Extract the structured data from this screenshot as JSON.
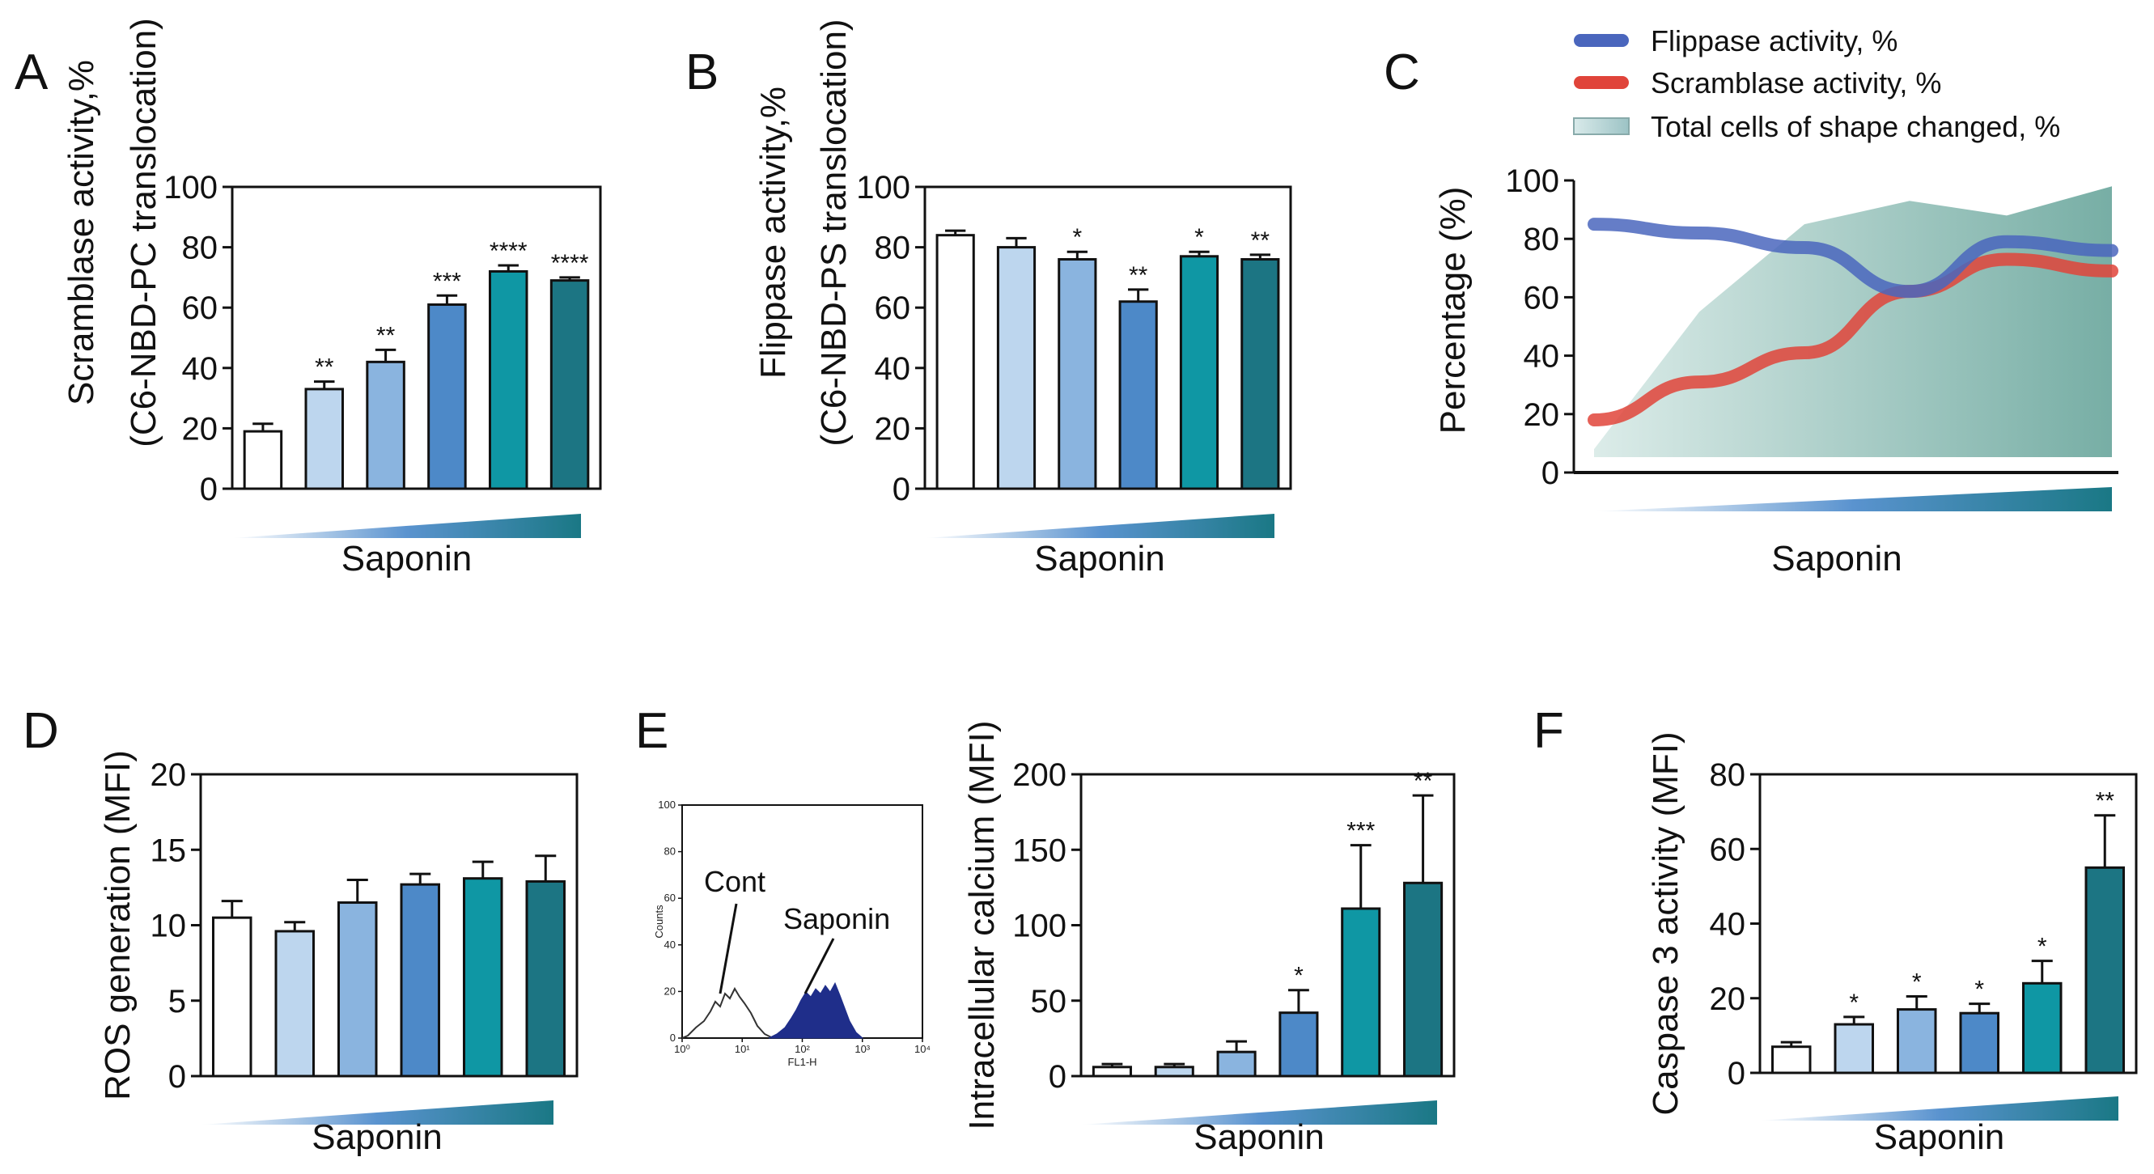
{
  "figure": {
    "colors": {
      "bar_colors": [
        "#ffffff",
        "#bdd6ee",
        "#8ab4df",
        "#4d89c8",
        "#0f97a4",
        "#1c7583"
      ],
      "flippase": "#4a66bd",
      "scramblase": "#e0443a",
      "shape_fill": "#9fc9c3"
    }
  },
  "chart_data": [
    {
      "id": "A",
      "letter": "A",
      "type": "bar",
      "ylabel": "Scramblase activity,%",
      "ylabel2": "(C6-NBD-PC translocation)",
      "xlabel": "Saponin",
      "ylim": [
        0,
        100
      ],
      "yticks": [
        "0",
        "20",
        "40",
        "60",
        "80",
        "100"
      ],
      "values": [
        19,
        33,
        42,
        61,
        72,
        69
      ],
      "errors": [
        2.5,
        2.5,
        4,
        3,
        2,
        1
      ],
      "stars": [
        "",
        "**",
        "**",
        "***",
        "****",
        "****"
      ]
    },
    {
      "id": "B",
      "letter": "B",
      "type": "bar",
      "ylabel": "Flippase activity,%",
      "ylabel2": "(C6-NBD-PS translocation)",
      "xlabel": "Saponin",
      "ylim": [
        0,
        100
      ],
      "yticks": [
        "0",
        "20",
        "40",
        "60",
        "80",
        "100"
      ],
      "values": [
        84,
        80,
        76,
        62,
        77,
        76
      ],
      "errors": [
        1.5,
        3,
        2.5,
        4,
        1.5,
        1.5
      ],
      "stars": [
        "",
        "",
        "*",
        "**",
        "*",
        "**"
      ]
    },
    {
      "id": "C",
      "letter": "C",
      "type": "line",
      "ylabel": "Percentage (%)",
      "xlabel": "Saponin",
      "ylim": [
        0,
        100
      ],
      "yticks": [
        "0",
        "20",
        "40",
        "60",
        "80",
        "100"
      ],
      "legend": [
        "Flippase activity, %",
        "Scramblase activity, %",
        "Total cells of shape changed, %"
      ],
      "x": [
        0,
        1,
        2,
        3,
        4,
        5
      ],
      "series": [
        {
          "name": "Flippase activity, %",
          "values": [
            85,
            82,
            77,
            62,
            79,
            76
          ]
        },
        {
          "name": "Scramblase activity, %",
          "values": [
            18,
            31,
            41,
            62,
            73,
            69
          ]
        },
        {
          "name": "Total cells of shape changed, %",
          "values": [
            8,
            55,
            85,
            93,
            88,
            98
          ]
        }
      ]
    },
    {
      "id": "D",
      "letter": "D",
      "type": "bar",
      "ylabel": "ROS generation (MFI)",
      "xlabel": "Saponin",
      "ylim": [
        0,
        20
      ],
      "yticks": [
        "0",
        "5",
        "10",
        "15",
        "20"
      ],
      "values": [
        10.5,
        9.6,
        11.5,
        12.7,
        13.1,
        12.9
      ],
      "errors": [
        1.1,
        0.6,
        1.5,
        0.7,
        1.1,
        1.7
      ],
      "stars": [
        "",
        "",
        "",
        "",
        "",
        ""
      ]
    },
    {
      "id": "E_hist",
      "letter": "E",
      "type": "histogram",
      "ylabel": "Counts",
      "xlabel": "FL1-H",
      "yticks": [
        "0",
        "20",
        "40",
        "60",
        "80",
        "100"
      ],
      "xticks": [
        "10⁰",
        "10¹",
        "10²",
        "10³",
        "10⁴"
      ],
      "labels": [
        "Cont",
        "Saponin"
      ]
    },
    {
      "id": "E",
      "letter": "",
      "type": "bar",
      "ylabel": "Intracellular calcium (MFI)",
      "xlabel": "Saponin",
      "ylim": [
        0,
        200
      ],
      "yticks": [
        "0",
        "50",
        "100",
        "150",
        "200"
      ],
      "values": [
        6,
        6,
        16,
        42,
        111,
        128
      ],
      "errors": [
        2,
        2,
        7,
        15,
        42,
        58
      ],
      "stars": [
        "",
        "",
        "",
        "*",
        "***",
        "**"
      ]
    },
    {
      "id": "F",
      "letter": "F",
      "type": "bar",
      "ylabel": "Caspase 3 activity (MFI)",
      "xlabel": "Saponin",
      "ylim": [
        0,
        80
      ],
      "yticks": [
        "0",
        "20",
        "40",
        "60",
        "80"
      ],
      "values": [
        7,
        13,
        17,
        16,
        24,
        55
      ],
      "errors": [
        1.2,
        2,
        3.5,
        2.5,
        6,
        14
      ],
      "stars": [
        "",
        "*",
        "*",
        "*",
        "*",
        "**"
      ]
    }
  ]
}
